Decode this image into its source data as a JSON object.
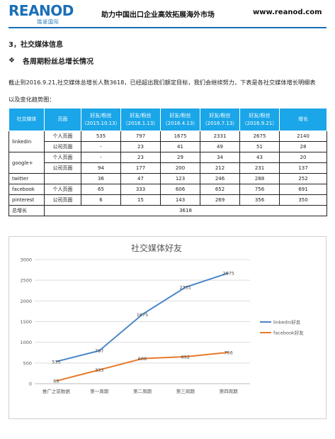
{
  "header": {
    "logo_text": "REANOD",
    "logo_sub": "瑞诺国际",
    "slogan": "助力中国出口企业高效拓展海外市场",
    "website": "www.reanod.com"
  },
  "section_title": "3，社交媒体信息",
  "subsection_title": "各周期粉丝总增长情况",
  "paragraph": "截止到2016.9.21,社交媒体总增长人数3618，已经超出我们额定目标，我们会继续努力，下表是各社交媒体增长明细表以及变化趋势图：",
  "table": {
    "headers": [
      "社交媒体",
      "页面",
      "好友/粉丝（2015.10.13）",
      "好友/粉丝（2016.1.13）",
      "好友/粉丝（2016.4.13）",
      "好友/粉丝（2016.7.13）",
      "好友/粉丝（2016.9.21）",
      "增长"
    ],
    "rows": [
      {
        "platform": "linkedin",
        "page": "个人页面",
        "v": [
          "535",
          "797",
          "1675",
          "2331",
          "2675",
          "2140"
        ]
      },
      {
        "platform": "",
        "page": "公司页面",
        "v": [
          "-",
          "23",
          "41",
          "49",
          "51",
          "28"
        ]
      },
      {
        "platform": "google+",
        "page": "个人页面",
        "v": [
          "-",
          "23",
          "29",
          "34",
          "43",
          "20"
        ]
      },
      {
        "platform": "",
        "page": "公司页面",
        "v": [
          "94",
          "177",
          "200",
          "212",
          "231",
          "137"
        ]
      },
      {
        "platform": "twitter",
        "page": "",
        "v": [
          "36",
          "47",
          "123",
          "246",
          "288",
          "252"
        ]
      },
      {
        "platform": "facebook",
        "page": "个人页面",
        "v": [
          "65",
          "333",
          "606",
          "652",
          "756",
          "691"
        ]
      },
      {
        "platform": "pinterest",
        "page": "公司页面",
        "v": [
          "6",
          "15",
          "143",
          "269",
          "356",
          "350"
        ]
      }
    ],
    "total_label": "总增长",
    "total_value": "3618"
  },
  "chart_data": {
    "type": "line",
    "title": "社交媒体好友",
    "categories": [
      "推广之前数据",
      "第一周期",
      "第二周期",
      "第三周期",
      "第四周期"
    ],
    "ylim": [
      0,
      3000
    ],
    "yticks": [
      "0",
      "500",
      "1000",
      "1500",
      "2000",
      "2500",
      "3000"
    ],
    "grid": true,
    "legend_position": "right",
    "series": [
      {
        "name": "linkedin好友",
        "values": [
          535,
          797,
          1675,
          2331,
          2675
        ],
        "color": "#4a86c8"
      },
      {
        "name": "facebook好友",
        "values": [
          65,
          333,
          606,
          652,
          756
        ],
        "color": "#e8792a"
      }
    ]
  }
}
